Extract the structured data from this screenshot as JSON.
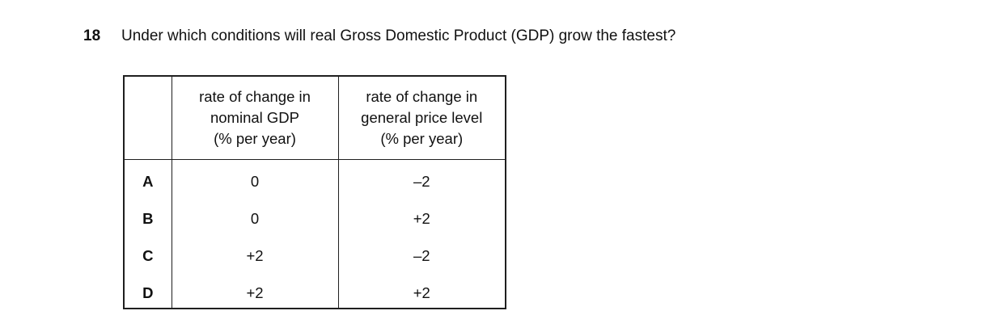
{
  "question": {
    "number": "18",
    "text": "Under which conditions will real Gross Domestic Product (GDP) grow the fastest?"
  },
  "table": {
    "columns": {
      "nominal_gdp": "rate of change in\nnominal GDP\n(% per year)",
      "price_level": "rate of change in\ngeneral price level\n(% per year)"
    },
    "rows": [
      {
        "label": "A",
        "nominal_gdp": "0",
        "price_level": "–2"
      },
      {
        "label": "B",
        "nominal_gdp": "0",
        "price_level": "+2"
      },
      {
        "label": "C",
        "nominal_gdp": "+2",
        "price_level": "–2"
      },
      {
        "label": "D",
        "nominal_gdp": "+2",
        "price_level": "+2"
      }
    ]
  },
  "colors": {
    "background": "#ffffff",
    "text": "#111111",
    "border": "#1f1f1f"
  }
}
